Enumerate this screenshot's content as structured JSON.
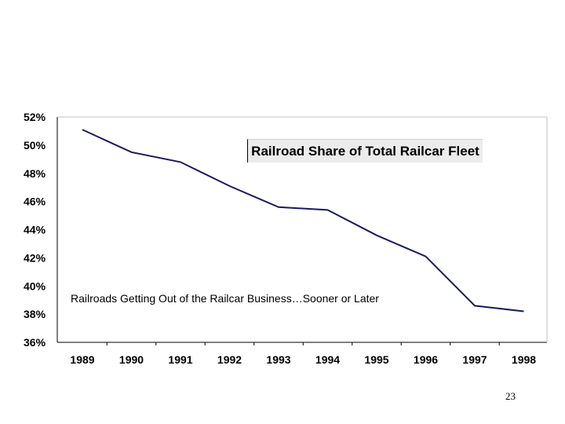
{
  "chart_data": {
    "type": "line",
    "title": "Railroad Share of Total Railcar Fleet",
    "categories": [
      "1989",
      "1990",
      "1991",
      "1992",
      "1993",
      "1994",
      "1995",
      "1996",
      "1997",
      "1998"
    ],
    "series": [
      {
        "values": [
          51.1,
          49.5,
          48.8,
          47.1,
          45.6,
          45.4,
          43.6,
          42.1,
          38.6,
          38.2
        ]
      }
    ],
    "ylim": [
      36,
      52
    ],
    "yticks": [
      "52%",
      "50%",
      "48%",
      "46%",
      "44%",
      "42%",
      "40%",
      "38%",
      "36%"
    ],
    "grid": false,
    "line_color": "#1a1a5e",
    "annotation": "Railroads Getting Out of the Railcar Business…Sooner or Later"
  },
  "footer": {
    "page_number": "23"
  }
}
